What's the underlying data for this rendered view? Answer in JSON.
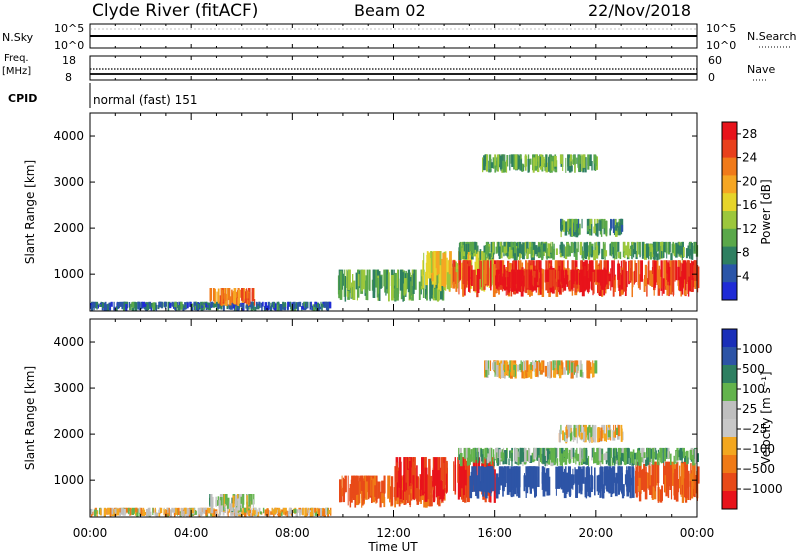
{
  "header": {
    "station": "Clyde River (fitACF)",
    "beam": "Beam 02",
    "date": "22/Nov/2018"
  },
  "summary": {
    "nsky_label": "N.Sky",
    "nsky_top": "10^5",
    "nsky_bottom": "10^0",
    "nsearch_label": "N.Search",
    "nsearch_top": "10^5",
    "nsearch_bottom": "10^0",
    "freq_label_1": "Freq.",
    "freq_label_2": "[MHz]",
    "freq_top": "18",
    "freq_bottom": "8",
    "nave_label": "Nave",
    "nave_top": "60",
    "nave_bottom": "0",
    "cpid_label": "CPID",
    "cpid_text": "normal (fast) 151"
  },
  "x_axis": {
    "label": "Time UT",
    "ticks": [
      "00:00",
      "04:00",
      "08:00",
      "12:00",
      "16:00",
      "20:00",
      "00:00"
    ],
    "tick_hours": [
      0,
      4,
      8,
      12,
      16,
      20,
      24
    ]
  },
  "colors": {
    "power": [
      "#1f2bd6",
      "#2a55a8",
      "#2e7f61",
      "#5aa84a",
      "#9cc73c",
      "#e6d42a",
      "#f5a623",
      "#f07a1a",
      "#e8401c",
      "#e8131b"
    ],
    "velocity": [
      "#1a2fb8",
      "#2d54a6",
      "#2e7f61",
      "#63b34c",
      "#bfbfbf",
      "#c8c8c8",
      "#f3a71f",
      "#ef7a16",
      "#e84a18",
      "#e8131b"
    ]
  },
  "chart_data": [
    {
      "type": "heatmap",
      "name": "power",
      "ylabel": "Slant Range [km]",
      "yticks": [
        1000,
        2000,
        3000,
        4000
      ],
      "ylim": [
        200,
        4500
      ],
      "xlim": [
        0,
        24
      ],
      "colorbar": {
        "label": "Power [dB]",
        "ticks": [
          "4",
          "8",
          "12",
          "16",
          "20",
          "24",
          "28"
        ],
        "range": [
          0,
          30
        ]
      },
      "regions": [
        {
          "t0": 0.0,
          "t1": 9.5,
          "r0": 200,
          "r1": 400,
          "value": 6
        },
        {
          "t0": 4.7,
          "t1": 6.5,
          "r0": 300,
          "r1": 700,
          "value": 22
        },
        {
          "t0": 9.8,
          "t1": 14.0,
          "r0": 400,
          "r1": 1100,
          "value": 10
        },
        {
          "t0": 13.0,
          "t1": 16.0,
          "r0": 600,
          "r1": 1500,
          "value": 16
        },
        {
          "t0": 14.3,
          "t1": 24.0,
          "r0": 500,
          "r1": 1300,
          "value": 26
        },
        {
          "t0": 16.0,
          "t1": 20.5,
          "r0": 600,
          "r1": 1100,
          "value": 29
        },
        {
          "t0": 14.5,
          "t1": 24.0,
          "r0": 1300,
          "r1": 1700,
          "value": 10
        },
        {
          "t0": 18.5,
          "t1": 21.0,
          "r0": 1800,
          "r1": 2200,
          "value": 9
        },
        {
          "t0": 15.5,
          "t1": 20.0,
          "r0": 3200,
          "r1": 3600,
          "value": 10
        }
      ]
    },
    {
      "type": "heatmap",
      "name": "velocity",
      "ylabel": "Slant Range [km]",
      "yticks": [
        1000,
        2000,
        3000,
        4000
      ],
      "ylim": [
        200,
        4500
      ],
      "xlim": [
        0,
        24
      ],
      "colorbar": {
        "label": "Velocity [m s⁻¹]",
        "ticks": [
          "1000",
          "500",
          "100",
          "25",
          "−25",
          "−100",
          "−500",
          "−1000"
        ]
      },
      "regions": [
        {
          "t0": 0.0,
          "t1": 9.5,
          "r0": 200,
          "r1": 400,
          "value": -25
        },
        {
          "t0": 4.7,
          "t1": 6.5,
          "r0": 300,
          "r1": 700,
          "value": 100
        },
        {
          "t0": 9.8,
          "t1": 14.0,
          "r0": 400,
          "r1": 1100,
          "value": -300
        },
        {
          "t0": 12.0,
          "t1": 16.0,
          "r0": 500,
          "r1": 1500,
          "value": -500
        },
        {
          "t0": 15.0,
          "t1": 21.5,
          "r0": 600,
          "r1": 1300,
          "value": 700
        },
        {
          "t0": 21.5,
          "t1": 24.0,
          "r0": 500,
          "r1": 1400,
          "value": -300
        },
        {
          "t0": 14.5,
          "t1": 24.0,
          "r0": 1300,
          "r1": 1700,
          "value": 200
        },
        {
          "t0": 18.5,
          "t1": 21.0,
          "r0": 1800,
          "r1": 2200,
          "value": 0
        },
        {
          "t0": 15.5,
          "t1": 20.0,
          "r0": 3200,
          "r1": 3600,
          "value": 0
        }
      ]
    }
  ]
}
